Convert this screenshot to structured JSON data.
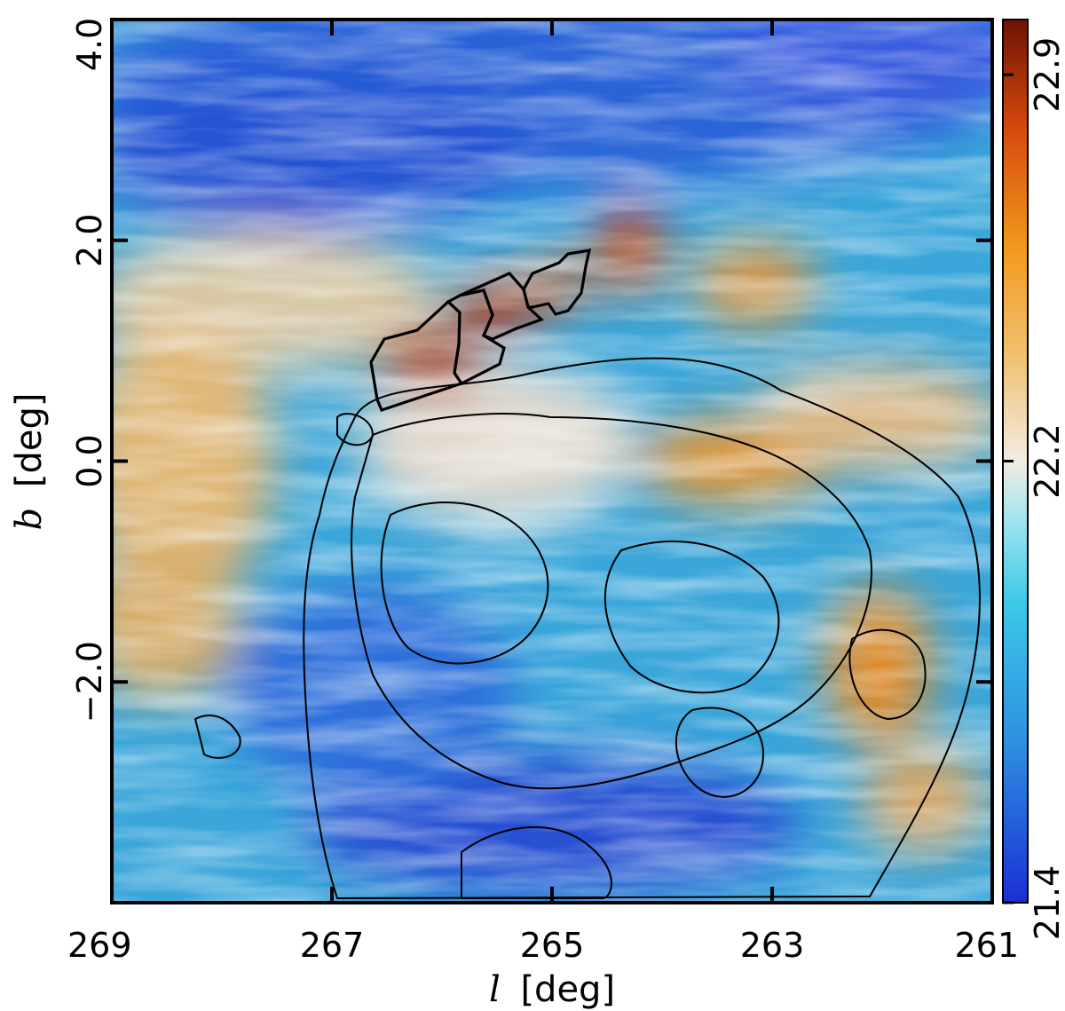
{
  "chart_data": {
    "type": "heatmap",
    "description_visible": "Galactic map with color image, streamline texture and black contours",
    "xlabel_symbol": "l",
    "xlabel_unit": "[deg]",
    "ylabel_symbol": "b",
    "ylabel_unit": "[deg]",
    "xlim": [
      269,
      261
    ],
    "ylim": [
      -4.0,
      4.0
    ],
    "x_tick_labels": [
      "269",
      "267",
      "265",
      "263",
      "261"
    ],
    "x_ticks": [
      269,
      267,
      265,
      263,
      261
    ],
    "y_tick_labels": [
      "−2.0",
      "0.0",
      "2.0",
      "4.0"
    ],
    "y_ticks": [
      -2.0,
      0.0,
      2.0,
      4.0
    ],
    "colorbar": {
      "min": 21.4,
      "max": 23.0,
      "tick_labels": [
        "21.4",
        "22.2",
        "22.9"
      ],
      "tick_values": [
        21.4,
        22.2,
        22.9
      ],
      "colors": [
        "#1a2fd6",
        "#2f8fe0",
        "#3cc8e8",
        "#a8e6ee",
        "#f2ece2",
        "#f0c070",
        "#f29a1c",
        "#d4480e",
        "#6e1205"
      ]
    },
    "colormap_sample_regions": [
      {
        "l": 265.9,
        "b": 1.0,
        "value": 22.9
      },
      {
        "l": 265.6,
        "b": 1.4,
        "value": 22.8
      },
      {
        "l": 264.3,
        "b": 1.9,
        "value": 22.7
      },
      {
        "l": 263.2,
        "b": -0.1,
        "value": 22.5
      },
      {
        "l": 262.0,
        "b": -1.8,
        "value": 22.6
      },
      {
        "l": 268.4,
        "b": 0.2,
        "value": 22.4
      },
      {
        "l": 266.0,
        "b": -3.6,
        "value": 21.5
      },
      {
        "l": 267.5,
        "b": 3.0,
        "value": 21.6
      }
    ]
  }
}
